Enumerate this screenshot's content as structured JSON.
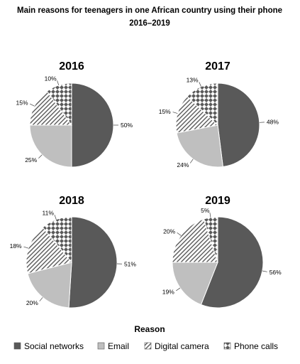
{
  "chart_data": {
    "type": "pie",
    "title_line1": "Main reasons for teenagers in one African country using their phone",
    "title_line2": "2016–2019",
    "legend_title": "Reason",
    "legend_position": "bottom",
    "categories": [
      "Social networks",
      "Email",
      "Digital camera",
      "Phone calls"
    ],
    "colors": {
      "Social networks": "#595959",
      "Email": "#bfbfbf",
      "Digital camera": "hatch-diagonal",
      "Phone calls": "checker-diamond"
    },
    "charts": [
      {
        "year": "2016",
        "values": [
          50,
          25,
          15,
          10
        ],
        "labels": [
          "50%",
          "25%",
          "15%",
          "10%"
        ]
      },
      {
        "year": "2017",
        "values": [
          48,
          24,
          15,
          13
        ],
        "labels": [
          "48%",
          "24%",
          "15%",
          "13%"
        ]
      },
      {
        "year": "2018",
        "values": [
          51,
          20,
          18,
          11
        ],
        "labels": [
          "51%",
          "20%",
          "18%",
          "11%"
        ]
      },
      {
        "year": "2019",
        "values": [
          56,
          19,
          20,
          5
        ],
        "labels": [
          "56%",
          "19%",
          "20%",
          "5%"
        ]
      }
    ]
  }
}
